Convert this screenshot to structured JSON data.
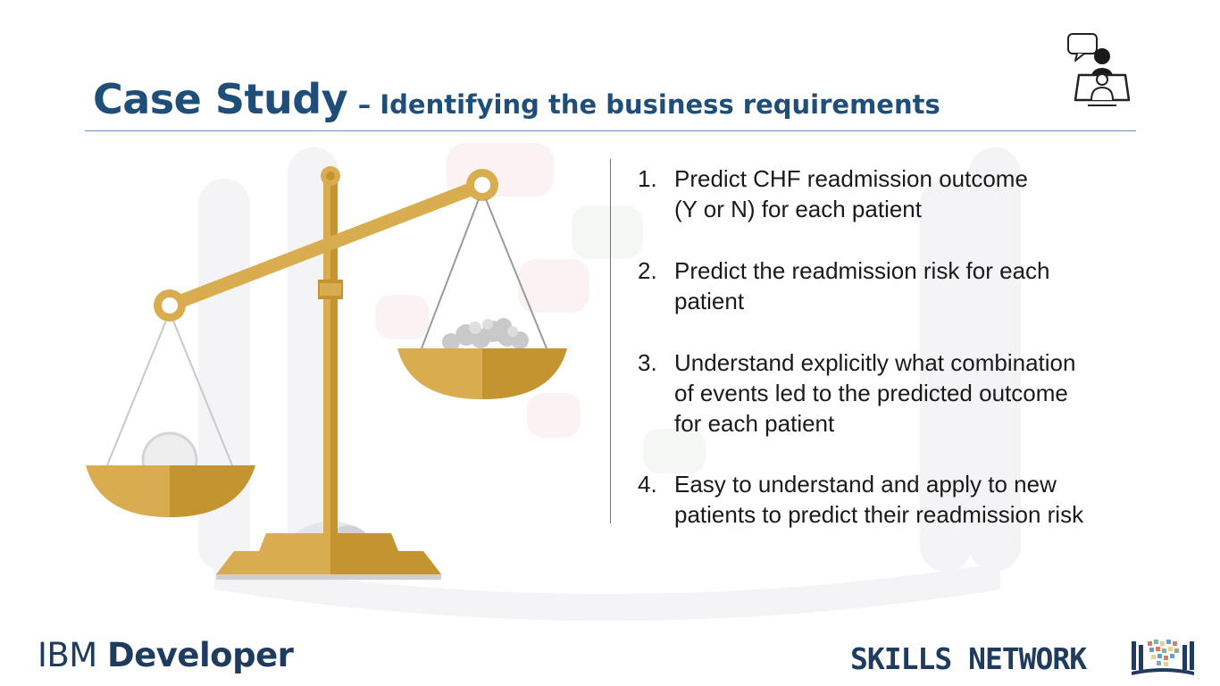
{
  "slide": {
    "title_main": "Case Study",
    "title_sub": "– Identifying the business requirements"
  },
  "requirements": [
    {
      "number": "1.",
      "lines": [
        "Predict CHF readmission outcome",
        "(Y or N) for each patient"
      ]
    },
    {
      "number": "2.",
      "lines": [
        "Predict the readmission risk for each",
        "patient"
      ]
    },
    {
      "number": "3.",
      "lines": [
        "Understand explicitly what combination",
        "of events led to the predicted outcome",
        "for each patient"
      ]
    },
    {
      "number": "4.",
      "lines": [
        "Easy to understand and apply to new",
        "patients to predict their readmission risk"
      ]
    }
  ],
  "footer": {
    "brand_ibm": "IBM",
    "brand_developer": "Developer",
    "skills_network": "SKILLS NETWORK"
  },
  "icons": {
    "instructor": "instructor-speech-icon",
    "scale": "balance-scale-illustration",
    "skills_logo": "skills-network-logo-icon"
  },
  "colors": {
    "title": "#1f4e79",
    "gold": "#d9ad4f",
    "gold_dark": "#c49431",
    "divider": "#4b7bb5",
    "brand": "#1f3b5e"
  }
}
